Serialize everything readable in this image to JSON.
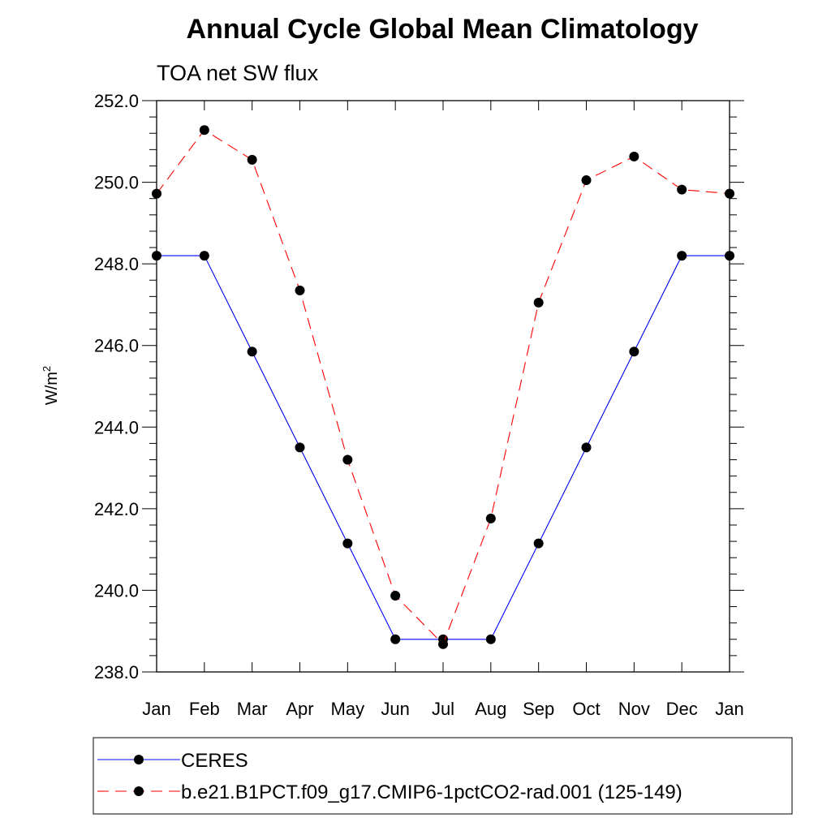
{
  "chart_data": {
    "type": "line",
    "title": "Annual Cycle Global Mean Climatology",
    "subtitle": "TOA net SW flux",
    "ylabel_base": "W/m",
    "ylabel_sup": "2",
    "xlabel": "",
    "categories": [
      "Jan",
      "Feb",
      "Mar",
      "Apr",
      "May",
      "Jun",
      "Jul",
      "Aug",
      "Sep",
      "Oct",
      "Nov",
      "Dec",
      "Jan"
    ],
    "ylim": [
      238.0,
      252.0
    ],
    "yticks": [
      238.0,
      240.0,
      242.0,
      244.0,
      246.0,
      248.0,
      250.0,
      252.0
    ],
    "ytick_labels": [
      "238.0",
      "240.0",
      "242.0",
      "244.0",
      "246.0",
      "248.0",
      "250.0",
      "252.0"
    ],
    "grid": false,
    "legend_position": "bottom",
    "series": [
      {
        "name": "CERES",
        "color": "#0000ff",
        "dash": "solid",
        "values": [
          248.2,
          248.2,
          245.85,
          243.5,
          241.15,
          238.8,
          238.8,
          238.8,
          241.15,
          243.5,
          245.85,
          248.2,
          248.2
        ]
      },
      {
        "name": "b.e21.B1PCT.f09_g17.CMIP6-1pctCO2-rad.001 (125-149)",
        "color": "#ff0000",
        "dash": "dashed",
        "values": [
          249.72,
          251.28,
          250.55,
          247.35,
          243.2,
          239.87,
          238.68,
          241.76,
          247.05,
          250.05,
          250.63,
          249.82,
          249.72
        ]
      }
    ]
  }
}
